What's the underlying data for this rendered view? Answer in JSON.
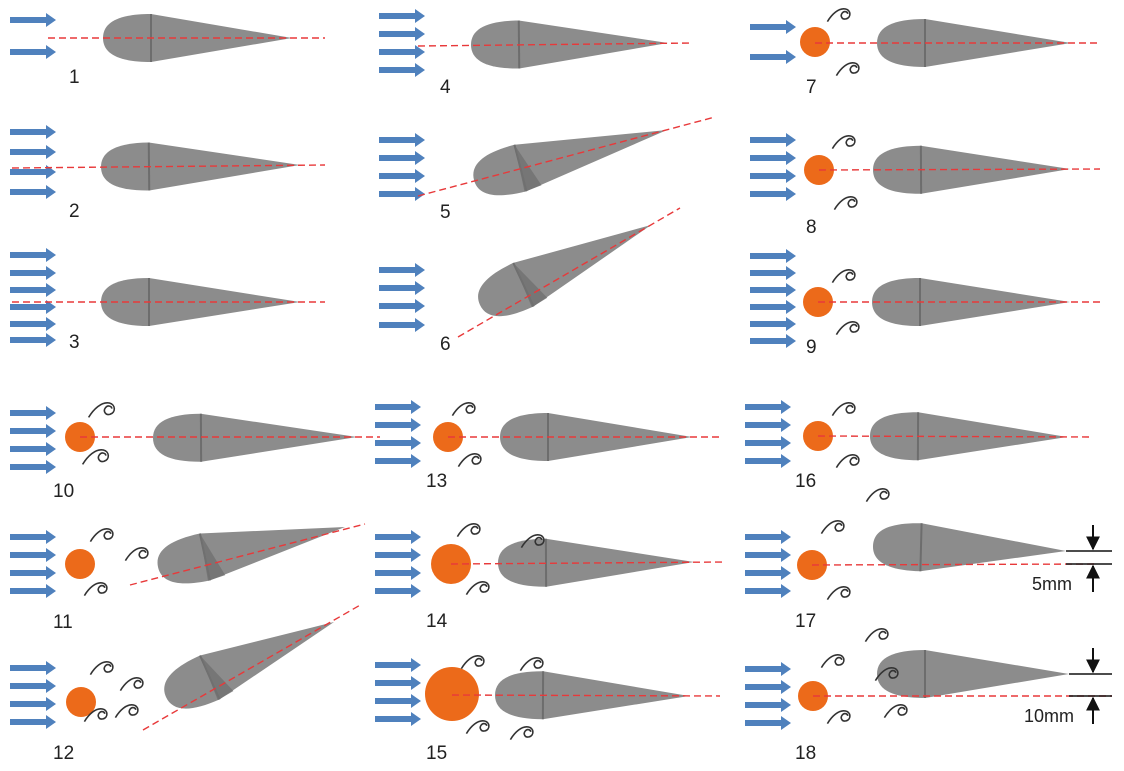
{
  "colors": {
    "flow_arrow": "#4f81bd",
    "airfoil": "#8c8c8c",
    "airfoil_edge": "#6d6d6d",
    "cylinder": "#ec6a1a",
    "centerline": "#e8393a",
    "vortex": "#333333",
    "text": "#222222"
  },
  "icons": {
    "flow": "blue-arrow-icon",
    "vortex": "curl-vortex-icon",
    "cylinder": "orange-circle",
    "airfoil": "gray-teardrop-airfoil"
  },
  "cases": [
    {
      "label": "1",
      "arrows": 2,
      "cylinder": "none",
      "vortices": false,
      "aoa_deg": 0,
      "offset": ""
    },
    {
      "label": "2",
      "arrows": 4,
      "cylinder": "none",
      "vortices": false,
      "aoa_deg": 0,
      "offset": ""
    },
    {
      "label": "3",
      "arrows": 6,
      "cylinder": "none",
      "vortices": false,
      "aoa_deg": 0,
      "offset": ""
    },
    {
      "label": "4",
      "arrows": 4,
      "cylinder": "none",
      "vortices": false,
      "aoa_deg": 0,
      "offset": ""
    },
    {
      "label": "5",
      "arrows": 4,
      "cylinder": "none",
      "vortices": false,
      "aoa_deg": 15,
      "offset": ""
    },
    {
      "label": "6",
      "arrows": 4,
      "cylinder": "none",
      "vortices": false,
      "aoa_deg": 30,
      "offset": ""
    },
    {
      "label": "7",
      "arrows": 2,
      "cylinder": "small",
      "vortices": true,
      "aoa_deg": 0,
      "offset": ""
    },
    {
      "label": "8",
      "arrows": 4,
      "cylinder": "small",
      "vortices": true,
      "aoa_deg": 0,
      "offset": ""
    },
    {
      "label": "9",
      "arrows": 6,
      "cylinder": "small",
      "vortices": true,
      "aoa_deg": 0,
      "offset": ""
    },
    {
      "label": "10",
      "arrows": 4,
      "cylinder": "small",
      "vortices": true,
      "aoa_deg": 0,
      "offset": ""
    },
    {
      "label": "11",
      "arrows": 4,
      "cylinder": "small",
      "vortices": true,
      "aoa_deg": 15,
      "offset": ""
    },
    {
      "label": "12",
      "arrows": 4,
      "cylinder": "small",
      "vortices": true,
      "aoa_deg": 30,
      "offset": ""
    },
    {
      "label": "13",
      "arrows": 4,
      "cylinder": "small",
      "vortices": true,
      "aoa_deg": 0,
      "offset": ""
    },
    {
      "label": "14",
      "arrows": 4,
      "cylinder": "medium",
      "vortices": true,
      "aoa_deg": 0,
      "offset": ""
    },
    {
      "label": "15",
      "arrows": 4,
      "cylinder": "large",
      "vortices": true,
      "aoa_deg": 0,
      "offset": ""
    },
    {
      "label": "16",
      "arrows": 4,
      "cylinder": "small",
      "vortices": true,
      "aoa_deg": 0,
      "offset": ""
    },
    {
      "label": "17",
      "arrows": 4,
      "cylinder": "small",
      "vortices": true,
      "aoa_deg": 0,
      "offset": "5mm"
    },
    {
      "label": "18",
      "arrows": 4,
      "cylinder": "small",
      "vortices": true,
      "aoa_deg": 0,
      "offset": "10mm"
    }
  ]
}
